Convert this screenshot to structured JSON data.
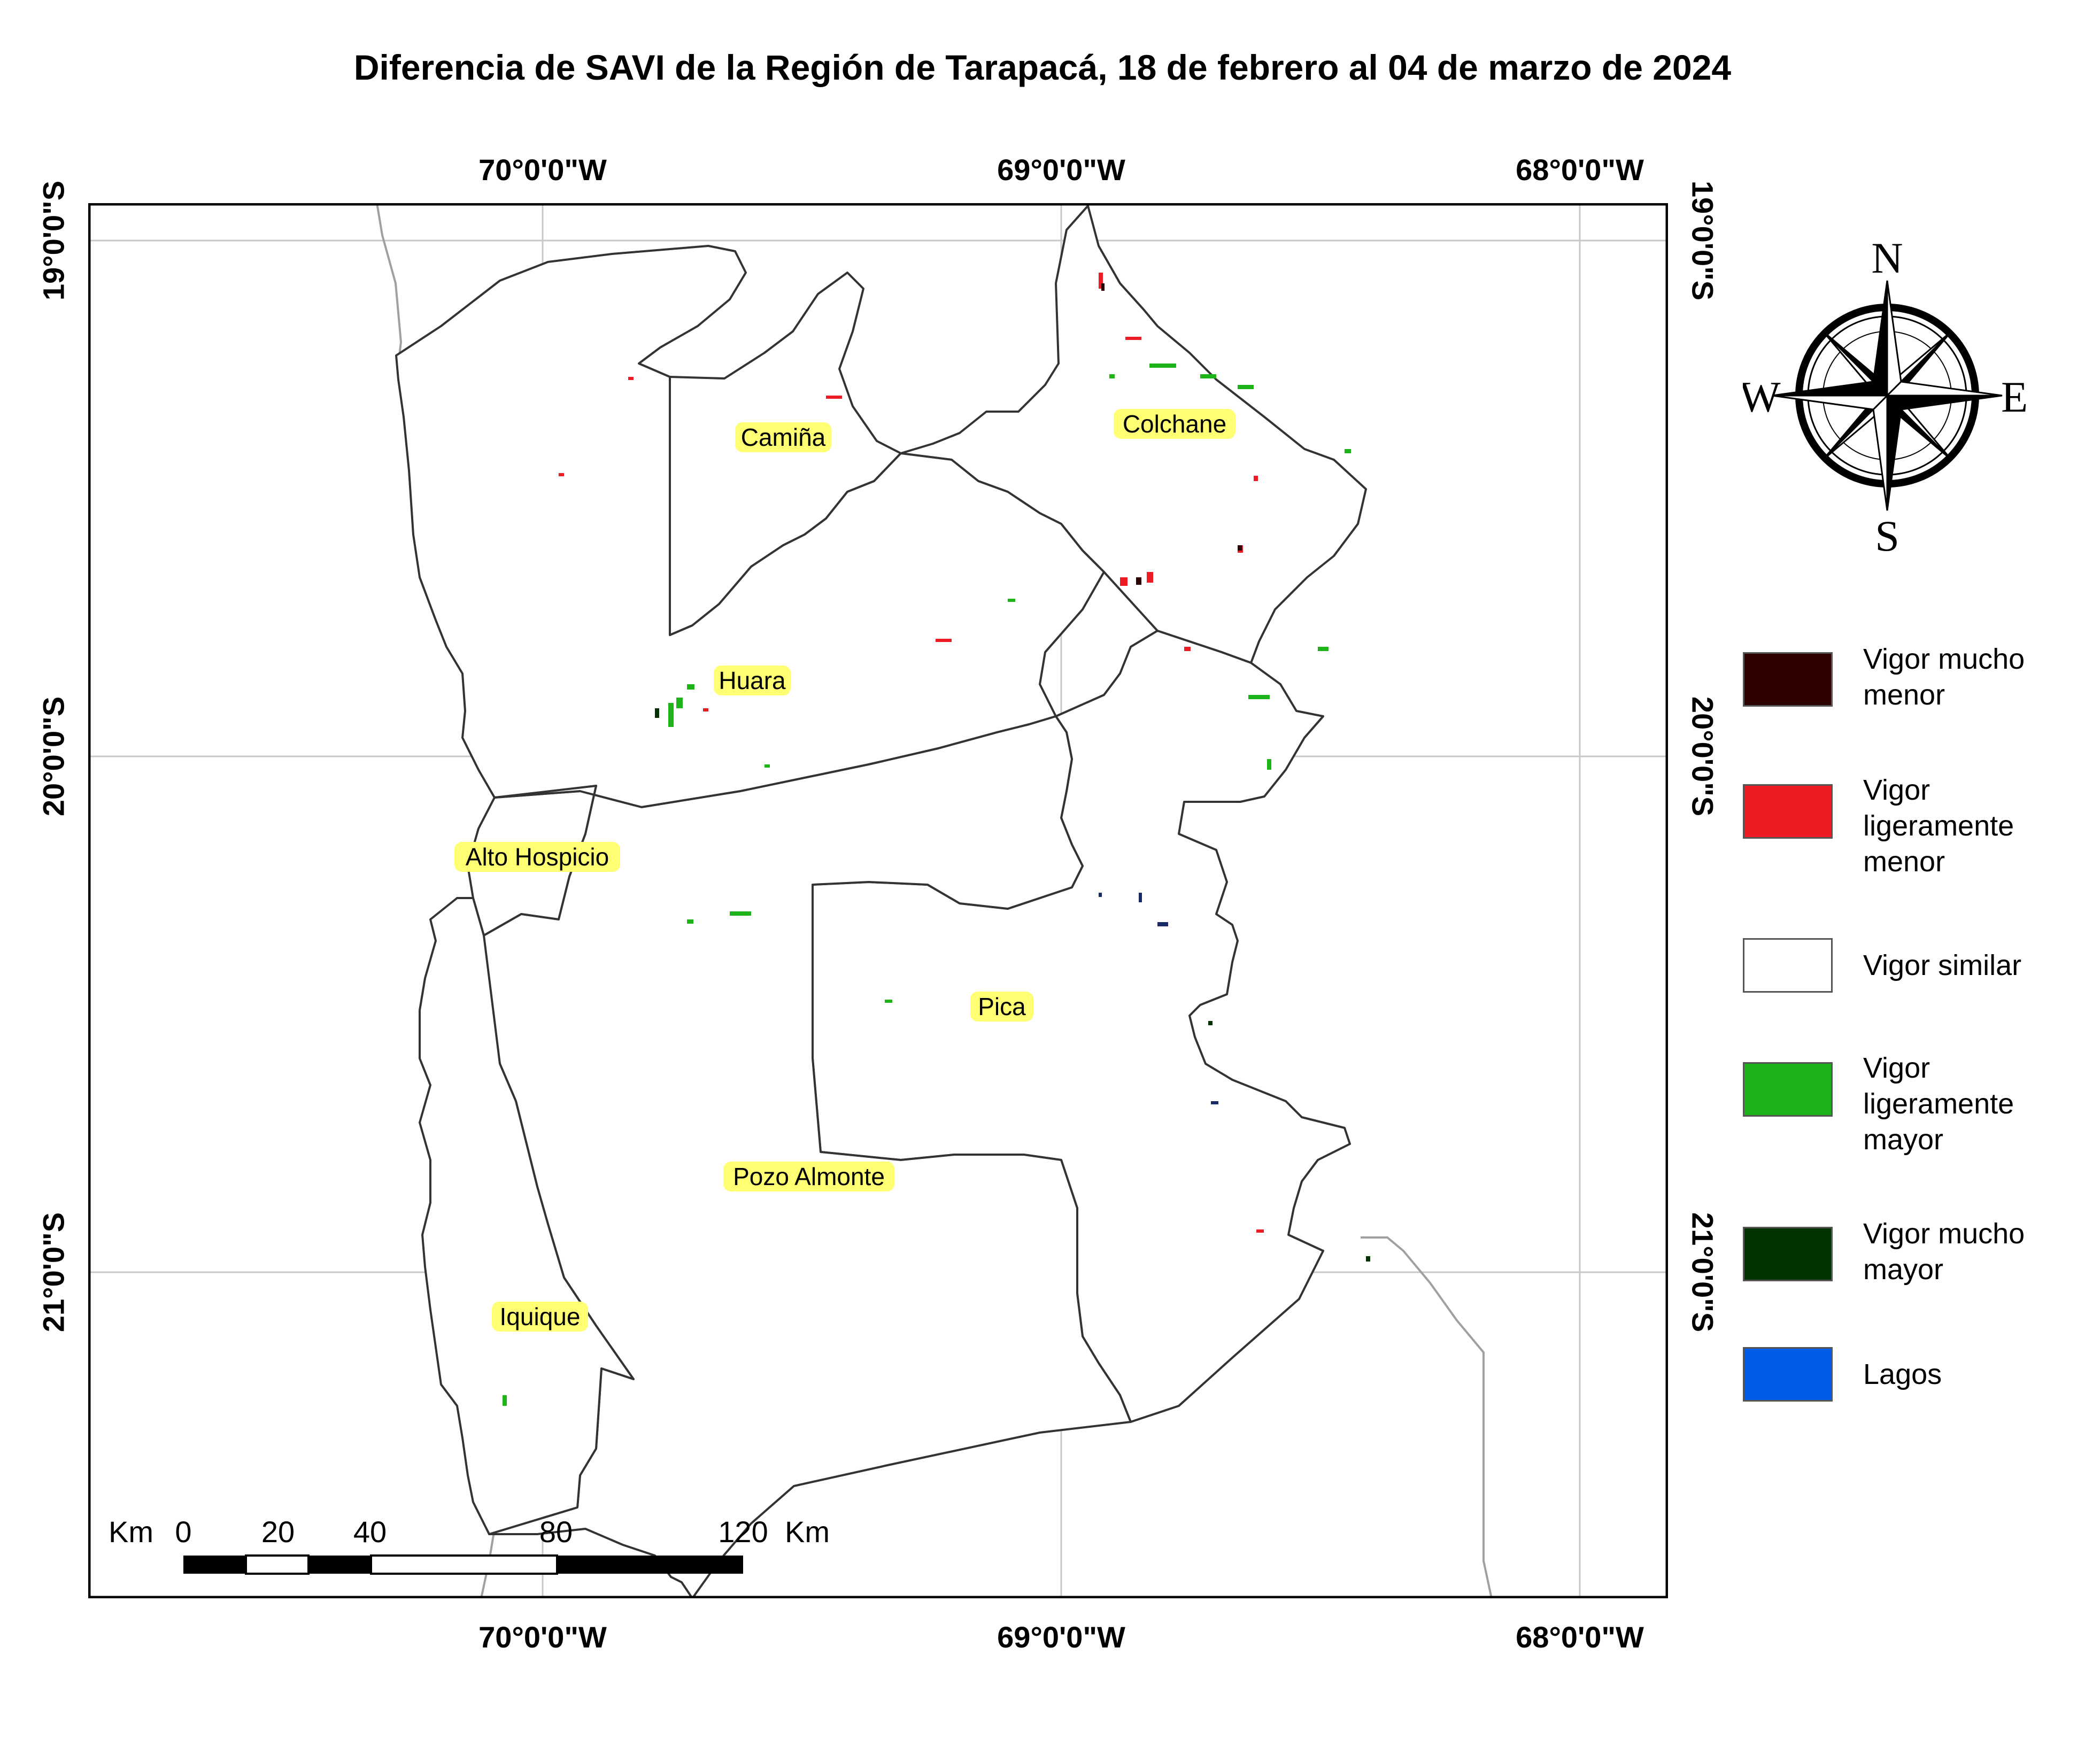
{
  "title": "Diferencia de SAVI de la Región de Tarapacá, 18 de febrero al 04 de marzo de 2024",
  "axes": {
    "top_labels": [
      "70°0'0\"W",
      "69°0'0\"W",
      "68°0'0\"W"
    ],
    "bottom_labels": [
      "70°0'0\"W",
      "69°0'0\"W",
      "68°0'0\"W"
    ],
    "left_labels": [
      "19°0'0\"S",
      "20°0'0\"S",
      "21°0'0\"S"
    ],
    "right_labels": [
      "19°0'0\"S",
      "20°0'0\"S",
      "21°0'0\"S"
    ]
  },
  "places": [
    {
      "name": "Camiña"
    },
    {
      "name": "Colchane"
    },
    {
      "name": "Huara"
    },
    {
      "name": "Alto Hospicio"
    },
    {
      "name": "Pica"
    },
    {
      "name": "Pozo Almonte"
    },
    {
      "name": "Iquique"
    }
  ],
  "compass": {
    "north": "N",
    "south": "S",
    "east": "E",
    "west": "W"
  },
  "legend": {
    "items": [
      {
        "lines": [
          "Vigor mucho",
          "menor"
        ],
        "color": "#2e0000"
      },
      {
        "lines": [
          "Vigor",
          "ligeramente",
          "menor"
        ],
        "color": "#ed1c24"
      },
      {
        "lines": [
          "Vigor similar"
        ],
        "color": "#ffffff"
      },
      {
        "lines": [
          "Vigor",
          "ligeramente",
          "mayor"
        ],
        "color": "#1db319"
      },
      {
        "lines": [
          "Vigor mucho",
          "mayor"
        ],
        "color": "#003300"
      },
      {
        "lines": [
          "Lagos"
        ],
        "color": "#005ce6"
      }
    ]
  },
  "scale_bar": {
    "unit_left": "Km",
    "unit_right": "Km",
    "ticks": [
      "0",
      "20",
      "40",
      "80",
      "120"
    ]
  },
  "colors": {
    "place_highlight": "#ffff73",
    "boundary": "#333333",
    "neighbor_border": "#a0a0a0",
    "graticule": "#c8c8c8"
  }
}
